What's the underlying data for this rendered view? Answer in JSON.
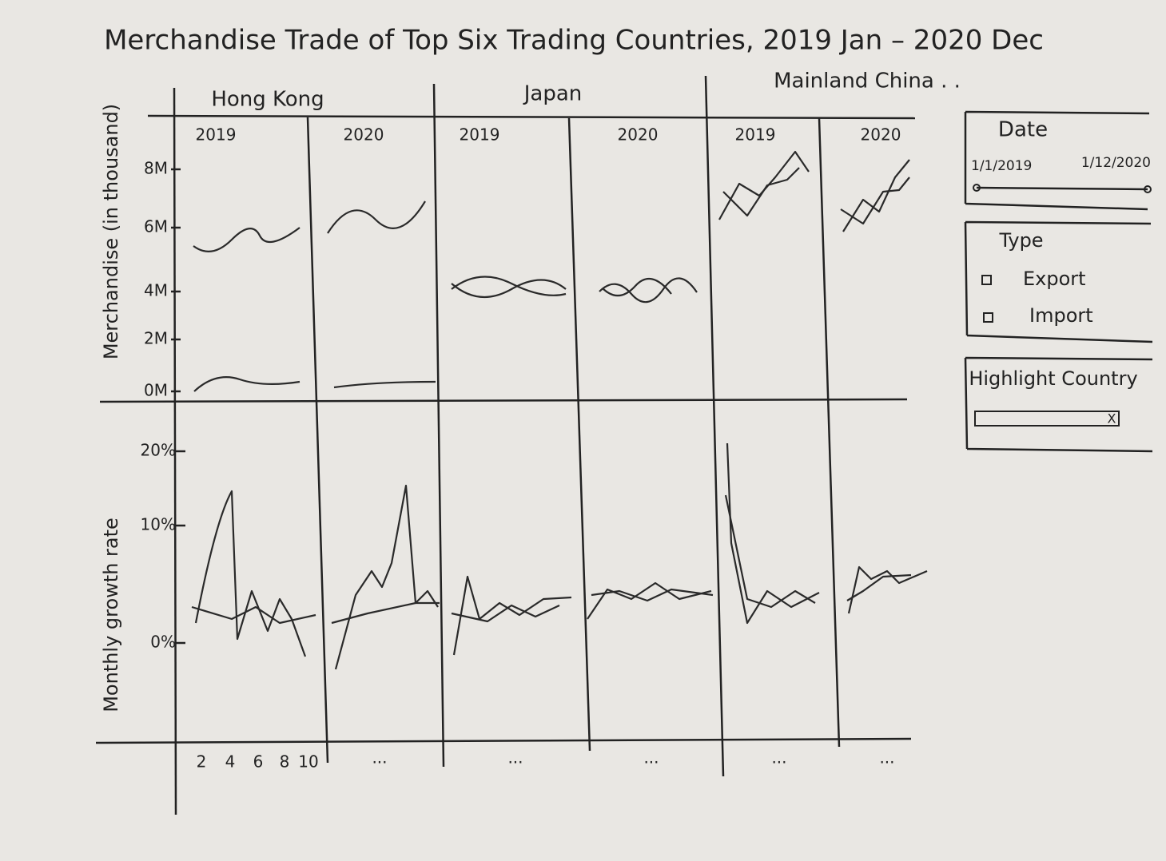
{
  "title": "Merchandise Trade of Top Six Trading Countries, 2019 Jan – 2020 Dec",
  "columns": [
    {
      "country": "Hong Kong",
      "years": [
        "2019",
        "2020"
      ]
    },
    {
      "country": "Japan",
      "years": [
        "2019",
        "2020"
      ]
    },
    {
      "country": "Mainland China . .",
      "years": [
        "2019",
        "2020"
      ]
    }
  ],
  "top_axis": {
    "label": "Merchandise (in thousand)",
    "ticks": [
      "8M",
      "6M",
      "4M",
      "2M",
      "0M"
    ]
  },
  "bottom_axis": {
    "label": "Monthly growth rate",
    "ticks": [
      "20%",
      "10%",
      "0%"
    ]
  },
  "x_ticks": [
    "2",
    "4",
    "6",
    "8",
    "10"
  ],
  "x_more": [
    "...",
    "...",
    "...",
    "...",
    "..."
  ],
  "filters": {
    "date": {
      "label": "Date",
      "start": "1/1/2019",
      "end": "1/12/2020"
    },
    "type": {
      "label": "Type",
      "options": [
        "Export",
        "Import"
      ]
    },
    "highlight": {
      "label": "Highlight Country",
      "clear": "X"
    }
  }
}
